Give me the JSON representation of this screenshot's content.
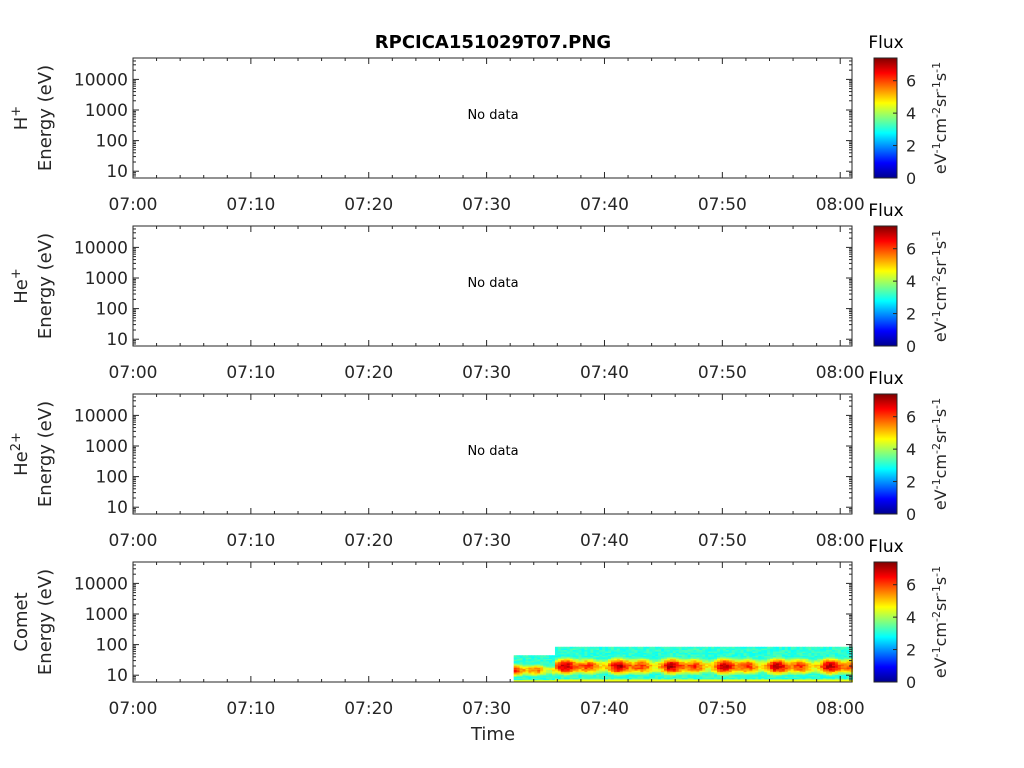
{
  "chart_data": {
    "type": "heatmap",
    "title": "RPCICA151029T07.PNG",
    "xlabel": "Time",
    "x_tick_labels": [
      "07:00",
      "07:10",
      "07:20",
      "07:30",
      "07:40",
      "07:50",
      "08:00"
    ],
    "x_ticks_minutes": [
      0,
      10,
      20,
      30,
      40,
      50,
      60
    ],
    "xlim_minutes": [
      0,
      61
    ],
    "yscale": "log",
    "ylim": [
      6,
      50000
    ],
    "y_ticks": [
      10,
      100,
      1000,
      10000
    ],
    "y_tick_labels": [
      "10",
      "100",
      "1000",
      "10000"
    ],
    "ylabel_unit": "Energy (eV)",
    "colorbar": {
      "title": "Flux",
      "label_parts": [
        "eV",
        "-1",
        "cm",
        "-2",
        "sr",
        "-1",
        "s",
        "-1"
      ],
      "range": [
        0,
        7.4
      ],
      "ticks": [
        0,
        2,
        4,
        6
      ],
      "tick_labels": [
        "0",
        "2",
        "4",
        "6"
      ],
      "colormap": "jet"
    },
    "panels": [
      {
        "species": "H",
        "species_sup": "+",
        "no_data_text": "No data"
      },
      {
        "species": "He",
        "species_sup": "+",
        "no_data_text": "No data"
      },
      {
        "species": "He",
        "species_sup": "2+",
        "no_data_text": "No data"
      },
      {
        "species": "Comet",
        "species_sup": "",
        "no_data_text": "",
        "data": {
          "segments": [
            {
              "t_start": 32.3,
              "t_end": 35.8,
              "e_low": 6,
              "e_high": 45,
              "flux_peak": 6.6
            },
            {
              "t_start": 35.8,
              "t_end": 61.0,
              "e_low": 6,
              "e_high": 85,
              "flux_peak": 7.2
            }
          ]
        }
      }
    ]
  }
}
